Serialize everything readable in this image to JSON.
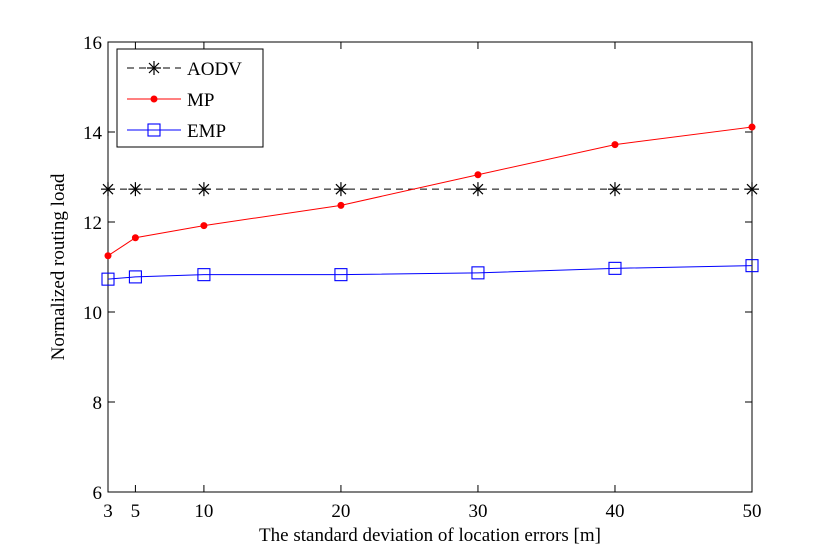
{
  "chart_data": {
    "type": "line",
    "xlabel": "The standard deviation of location errors [m]",
    "ylabel": "Normalized routing load",
    "xlim": [
      3,
      50
    ],
    "ylim": [
      6,
      16
    ],
    "xticks": [
      3,
      5,
      10,
      20,
      30,
      40,
      50
    ],
    "yticks": [
      6,
      8,
      10,
      12,
      14,
      16
    ],
    "grid": false,
    "legend_position": "top-left",
    "x": [
      3,
      5,
      10,
      20,
      30,
      40,
      50
    ],
    "series": [
      {
        "name": "AODV",
        "color": "#000000",
        "style": "dashed",
        "marker": "asterisk",
        "values": [
          12.73,
          12.73,
          12.73,
          12.73,
          12.73,
          12.73,
          12.73
        ]
      },
      {
        "name": "MP",
        "color": "#ff0000",
        "style": "solid",
        "marker": "dot",
        "values": [
          11.25,
          11.65,
          11.92,
          12.37,
          13.05,
          13.72,
          14.11
        ]
      },
      {
        "name": "EMP",
        "color": "#0000ff",
        "style": "solid",
        "marker": "square",
        "values": [
          10.73,
          10.78,
          10.83,
          10.83,
          10.87,
          10.97,
          11.03
        ]
      }
    ]
  }
}
